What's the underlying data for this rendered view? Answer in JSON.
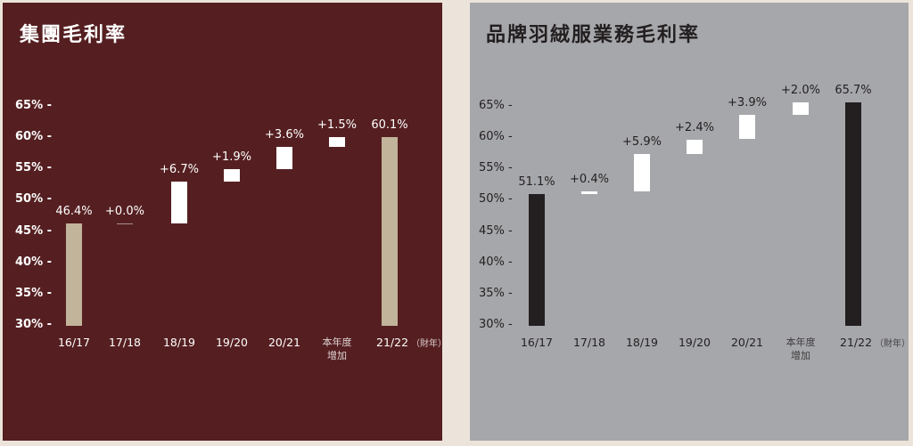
{
  "chart_data": [
    {
      "type": "bar",
      "subtype": "waterfall",
      "title": "集團毛利率",
      "ylabel": "",
      "xlabel": "",
      "ylim": [
        30,
        65
      ],
      "yticks": [
        "65% -",
        "60% -",
        "55% -",
        "50% -",
        "45% -",
        "40% -",
        "35% -",
        "30% -"
      ],
      "categories": [
        "16/17",
        "17/18",
        "18/19",
        "19/20",
        "20/21",
        "本年度增加",
        "21/22（財年）"
      ],
      "values": [
        46.4,
        0.0,
        6.7,
        1.9,
        3.6,
        1.5,
        60.1
      ],
      "labels": [
        "46.4%",
        "+0.0%",
        "+6.7%",
        "+1.9%",
        "+3.6%",
        "+1.5%",
        "60.1%"
      ],
      "kinds": [
        "total",
        "delta",
        "delta",
        "delta",
        "delta",
        "delta",
        "total"
      ],
      "colors": {
        "background": "#551f21",
        "total": "#c2b39b",
        "delta": "#ffffff",
        "text": "#ffffff"
      }
    },
    {
      "type": "bar",
      "subtype": "waterfall",
      "title": "品牌羽絨服業務毛利率",
      "ylabel": "",
      "xlabel": "",
      "ylim": [
        30,
        65
      ],
      "yticks": [
        "65% -",
        "60% -",
        "55% -",
        "50% -",
        "45% -",
        "40% -",
        "35% -",
        "30% -"
      ],
      "categories": [
        "16/17",
        "17/18",
        "18/19",
        "19/20",
        "20/21",
        "本年度增加",
        "21/22（財年）"
      ],
      "values": [
        51.1,
        0.4,
        5.9,
        2.4,
        3.9,
        2.0,
        65.7
      ],
      "labels": [
        "51.1%",
        "+0.4%",
        "+5.9%",
        "+2.4%",
        "+3.9%",
        "+2.0%",
        "65.7%"
      ],
      "kinds": [
        "total",
        "delta",
        "delta",
        "delta",
        "delta",
        "delta",
        "total"
      ],
      "colors": {
        "background": "#a6a7aa",
        "total": "#231f20",
        "delta": "#ffffff",
        "text": "#231f20"
      }
    }
  ],
  "panels": {
    "left": {
      "title": "集團毛利率",
      "xlabels": [
        {
          "main": "16/17"
        },
        {
          "main": "17/18"
        },
        {
          "main": "18/19"
        },
        {
          "main": "19/20"
        },
        {
          "main": "20/21"
        },
        {
          "line1": "本年度",
          "line2": "增加"
        },
        {
          "main": "21/22",
          "suffix": "（財年）"
        }
      ]
    },
    "right": {
      "title": "品牌羽絨服業務毛利率",
      "xlabels": [
        {
          "main": "16/17"
        },
        {
          "main": "17/18"
        },
        {
          "main": "18/19"
        },
        {
          "main": "19/20"
        },
        {
          "main": "20/21"
        },
        {
          "line1": "本年度",
          "line2": "增加"
        },
        {
          "main": "21/22",
          "suffix": "（財年）"
        }
      ]
    }
  }
}
